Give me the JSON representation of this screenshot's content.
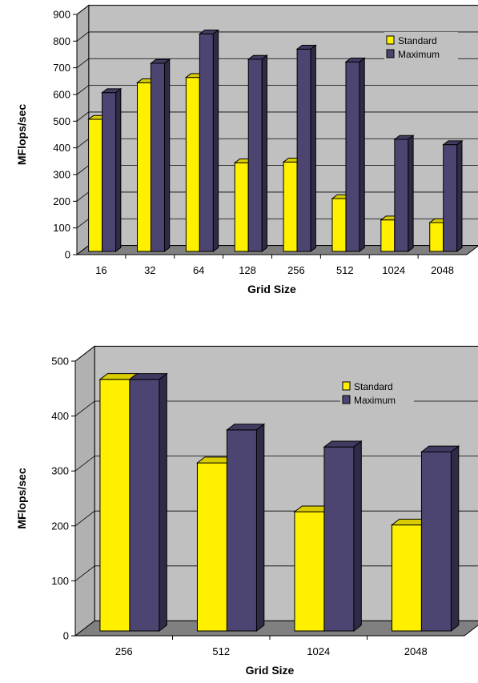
{
  "chart_data": [
    {
      "type": "bar",
      "categories": [
        "16",
        "32",
        "64",
        "128",
        "256",
        "512",
        "1024",
        "2048"
      ],
      "series": [
        {
          "name": "Standard",
          "values": [
            495,
            632,
            652,
            332,
            335,
            198,
            118,
            108
          ],
          "color": "#FFF000"
        },
        {
          "name": "Maximum",
          "values": [
            595,
            705,
            815,
            720,
            758,
            710,
            420,
            400
          ],
          "color": "#4C4572"
        }
      ],
      "xlabel": "Grid Size",
      "ylabel": "MFlops/sec",
      "ylim": [
        0,
        900
      ],
      "yticks": [
        0,
        100,
        200,
        300,
        400,
        500,
        600,
        700,
        800,
        900
      ],
      "grid": true,
      "legend_position": "top-right",
      "wall_color": "#C0C0C0",
      "floor_color": "#808080"
    },
    {
      "type": "bar",
      "categories": [
        "256",
        "512",
        "1024",
        "2048"
      ],
      "series": [
        {
          "name": "Standard",
          "values": [
            458,
            306,
            217,
            193
          ],
          "color": "#FFF000"
        },
        {
          "name": "Maximum",
          "values": [
            458,
            366,
            335,
            326
          ],
          "color": "#4C4572"
        }
      ],
      "xlabel": "Grid Size",
      "ylabel": "MFlops/sec",
      "ylim": [
        0,
        500
      ],
      "yticks": [
        0,
        100,
        200,
        300,
        400,
        500
      ],
      "grid": true,
      "legend_position": "top-right",
      "wall_color": "#C0C0C0",
      "floor_color": "#808080"
    }
  ]
}
